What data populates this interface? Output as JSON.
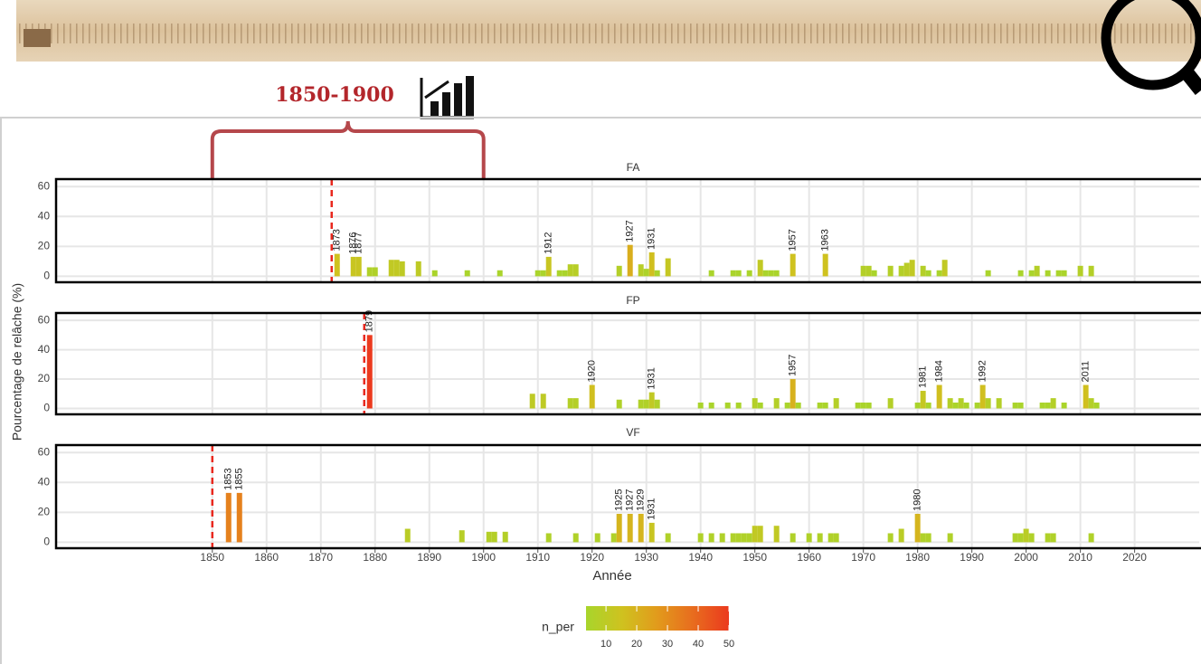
{
  "chart_data": {
    "type": "bar",
    "annotation": "1850-1900",
    "bracket": [
      1850,
      1900
    ],
    "ylabel": "Pourcentage de relâche (%)",
    "xlabel": "Année",
    "xlim": [
      1821.2,
      2031.9
    ],
    "xticks": [
      1850,
      1860,
      1870,
      1880,
      1890,
      1900,
      1910,
      1920,
      1930,
      1940,
      1950,
      1960,
      1970,
      1980,
      1990,
      2000,
      2010,
      2020
    ],
    "ylim": [
      -4,
      65
    ],
    "yticks": [
      0,
      20,
      40,
      60
    ],
    "grid": true,
    "marker_color": "#e8281e",
    "panels": [
      {
        "title": "FA",
        "marker": 1872,
        "bars": {
          "x": [
            1873,
            1876,
            1877,
            1879,
            1880,
            1883,
            1884,
            1885,
            1888,
            1891,
            1897,
            1903,
            1910,
            1911,
            1912,
            1914,
            1915,
            1916,
            1917,
            1925,
            1927,
            1929,
            1930,
            1931,
            1932,
            1934,
            1942,
            1946,
            1947,
            1949,
            1951,
            1952,
            1953,
            1954,
            1957,
            1963,
            1970,
            1971,
            1972,
            1975,
            1977,
            1978,
            1979,
            1981,
            1982,
            1984,
            1985,
            1993,
            1999,
            2001,
            2002,
            2004,
            2006,
            2007,
            2010,
            2012
          ],
          "values": [
            15,
            13,
            13,
            6,
            6,
            11,
            11,
            10,
            10,
            4,
            4,
            4,
            4,
            4,
            13,
            4,
            4,
            8,
            8,
            7,
            21,
            8,
            5,
            16,
            4,
            12,
            4,
            4,
            4,
            4,
            11,
            4,
            4,
            4,
            15,
            15,
            7,
            7,
            4,
            7,
            7,
            9,
            11,
            7,
            4,
            4,
            11,
            4,
            4,
            4,
            7,
            4,
            4,
            4,
            7,
            7
          ]
        },
        "labels": [
          1873,
          1876,
          1877,
          1912,
          1927,
          1931,
          1957,
          1963
        ]
      },
      {
        "title": "FP",
        "marker": 1878,
        "bars": {
          "x": [
            1879,
            1909,
            1911,
            1916,
            1917,
            1920,
            1925,
            1929,
            1930,
            1931,
            1932,
            1940,
            1942,
            1945,
            1947,
            1950,
            1951,
            1954,
            1956,
            1957,
            1958,
            1962,
            1963,
            1965,
            1969,
            1970,
            1971,
            1975,
            1980,
            1981,
            1982,
            1984,
            1986,
            1987,
            1988,
            1989,
            1991,
            1992,
            1993,
            1995,
            1998,
            1999,
            2003,
            2004,
            2005,
            2007,
            2011,
            2012,
            2013
          ],
          "values": [
            50,
            10,
            10,
            7,
            7,
            16,
            6,
            6,
            6,
            11,
            6,
            4,
            4,
            4,
            4,
            7,
            4,
            7,
            4,
            20,
            4,
            4,
            4,
            7,
            4,
            4,
            4,
            7,
            4,
            12,
            4,
            16,
            7,
            4,
            7,
            4,
            4,
            16,
            7,
            7,
            4,
            4,
            4,
            4,
            7,
            4,
            16,
            7,
            4
          ]
        },
        "labels": [
          1879,
          1920,
          1931,
          1957,
          1981,
          1984,
          1992,
          2011
        ]
      },
      {
        "title": "VF",
        "marker": 1850,
        "bars": {
          "x": [
            1853,
            1855,
            1886,
            1896,
            1901,
            1902,
            1904,
            1912,
            1917,
            1921,
            1924,
            1925,
            1927,
            1929,
            1931,
            1934,
            1940,
            1942,
            1944,
            1946,
            1947,
            1948,
            1949,
            1950,
            1951,
            1954,
            1957,
            1960,
            1962,
            1964,
            1965,
            1975,
            1977,
            1980,
            1981,
            1982,
            1986,
            1998,
            1999,
            2000,
            2001,
            2004,
            2005,
            2012
          ],
          "values": [
            33,
            33,
            9,
            8,
            7,
            7,
            7,
            6,
            6,
            6,
            6,
            19,
            19,
            19,
            13,
            6,
            6,
            6,
            6,
            6,
            6,
            6,
            6,
            11,
            11,
            11,
            6,
            6,
            6,
            6,
            6,
            6,
            9,
            19,
            6,
            6,
            6,
            6,
            6,
            9,
            6,
            6,
            6,
            6
          ]
        },
        "labels": [
          1853,
          1855,
          1925,
          1927,
          1929,
          1931,
          1980
        ]
      }
    ],
    "legend": {
      "title": "n_per",
      "lim": [
        3.5,
        50
      ],
      "ticks": [
        10,
        20,
        30,
        40,
        50
      ],
      "colors": [
        "#a8d52c",
        "#cfc21f",
        "#e29a1c",
        "#e86c1e",
        "#eb3a1e"
      ]
    }
  }
}
